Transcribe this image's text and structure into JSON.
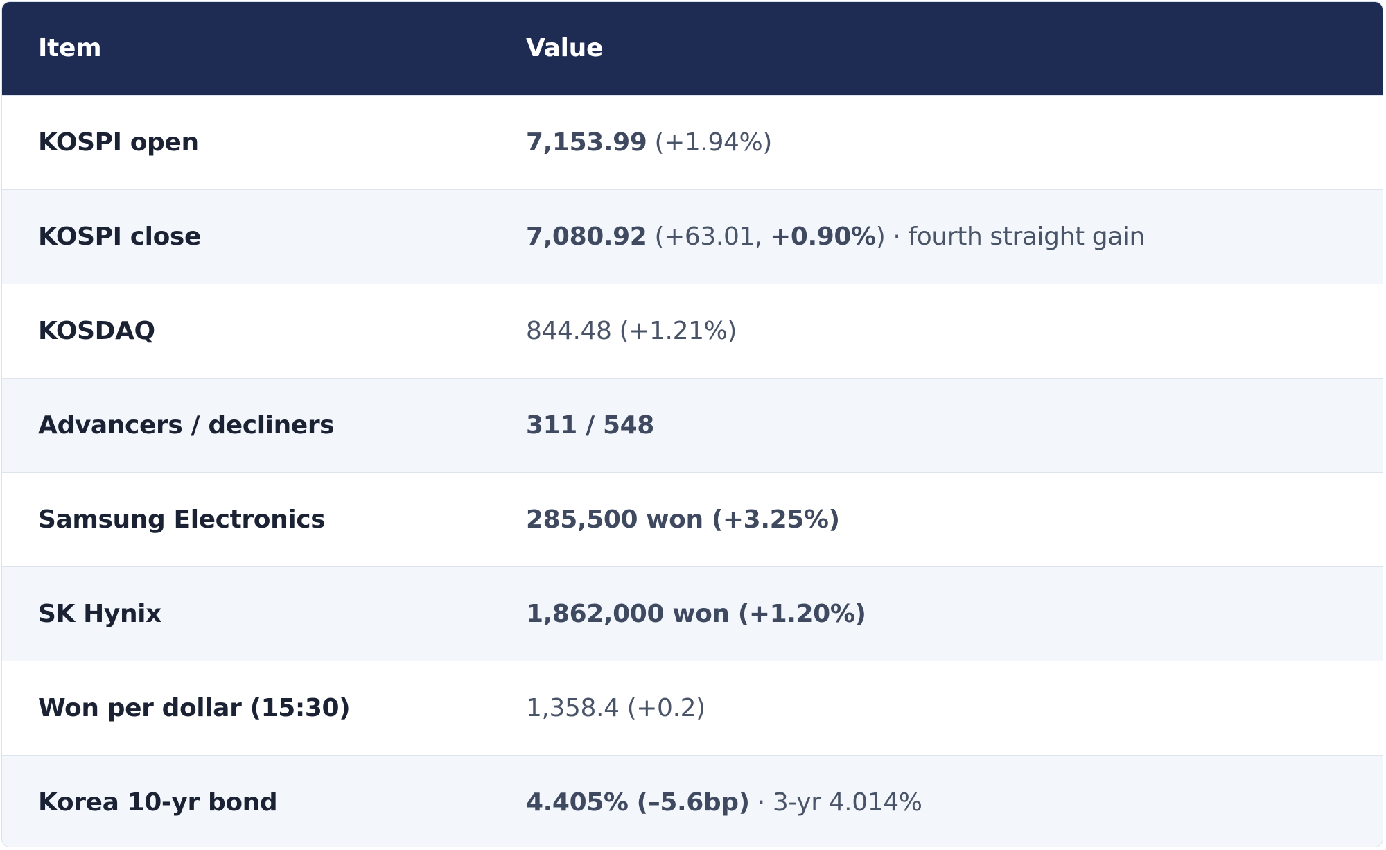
{
  "table": {
    "headers": {
      "item": "Item",
      "value": "Value"
    },
    "rows": [
      {
        "item": "KOSPI open",
        "value_main": "7,153.99",
        "value_rest": " (+1.94%)"
      },
      {
        "item": "KOSPI close",
        "value_main": "7,080.92",
        "value_mid": " (+63.01, ",
        "value_strong2": "+0.90%",
        "value_close": ")",
        "value_note": " · fourth straight gain"
      },
      {
        "item": "KOSDAQ",
        "value_plain": "844.48 (+1.21%)"
      },
      {
        "item": "Advancers / decliners",
        "value_main": "311 / 548"
      },
      {
        "item": "Samsung Electronics",
        "value_main": "285,500 won (+3.25%)"
      },
      {
        "item": "SK Hynix",
        "value_main": "1,862,000 won (+1.20%)"
      },
      {
        "item": "Won per dollar (15:30)",
        "value_plain": "1,358.4 (+0.2)"
      },
      {
        "item": "Korea 10-yr bond",
        "value_main": "4.405% (–5.6bp)",
        "value_note": " · 3-yr 4.014%"
      }
    ]
  }
}
